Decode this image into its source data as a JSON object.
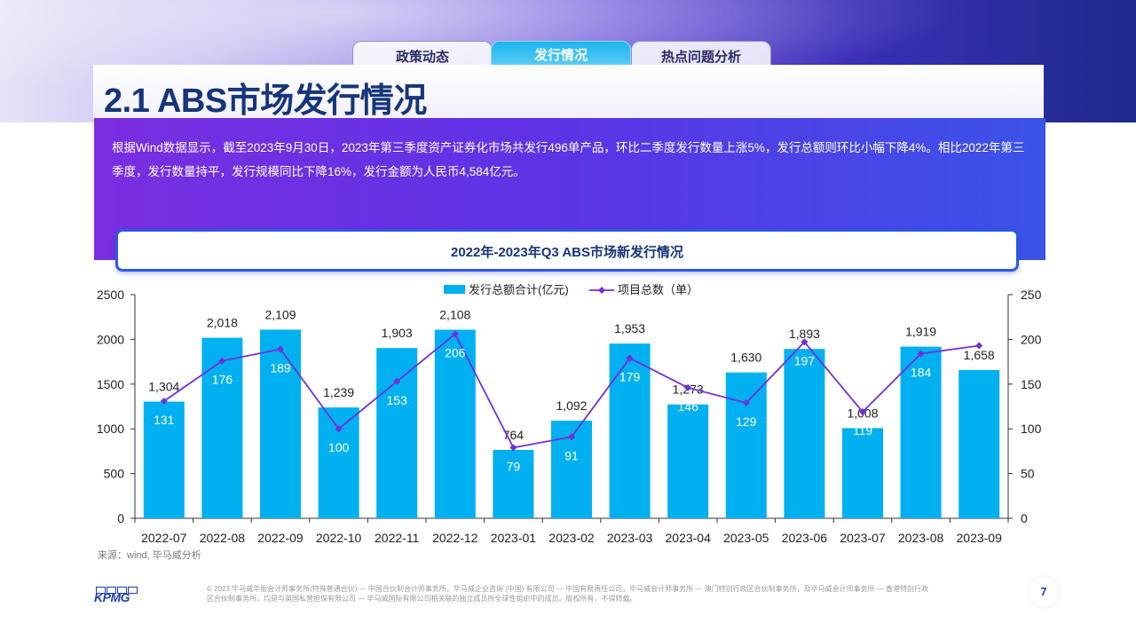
{
  "tabs": [
    "政策动态",
    "发行情况",
    "热点问题分析"
  ],
  "title": "2.1 ABS市场发行情况",
  "summary": "根据Wind数据显示，截至2023年9月30日，2023年第三季度资产证券化市场共发行496单产品，环比二季度发行数量上涨5%，发行总额则环比小幅下降4%。相比2022年第三季度，发行数量持平，发行规模同比下降16%，发行金额为人民币4,584亿元。",
  "chart_title": "2022年-2023年Q3 ABS市场新发行情况",
  "chart_data": {
    "type": "bar",
    "title": "2022年-2023年Q3 ABS市场新发行情况",
    "categories": [
      "2022-07",
      "2022-08",
      "2022-09",
      "2022-10",
      "2022-11",
      "2022-12",
      "2023-01",
      "2023-02",
      "2023-03",
      "2023-04",
      "2023-05",
      "2023-06",
      "2023-07",
      "2023-08",
      "2023-09"
    ],
    "series": [
      {
        "name": "发行总额合计(亿元)",
        "type": "bar",
        "axis": "left",
        "color": "#00b0f0",
        "values": [
          1304,
          2018,
          2109,
          1239,
          1903,
          2108,
          764,
          1092,
          1953,
          1273,
          1630,
          1893,
          1008,
          1919,
          1658
        ],
        "labels": [
          "1,304",
          "2,018",
          "2,109",
          "1,239",
          "1,903",
          "2,108",
          "764",
          "1,092",
          "1,953",
          "1,273",
          "1,630",
          "1,893",
          "1,008",
          "1,919",
          "1,658"
        ]
      },
      {
        "name": "项目总数（单）",
        "type": "line",
        "axis": "right",
        "color": "#7030d8",
        "values": [
          131,
          176,
          189,
          100,
          153,
          206,
          79,
          91,
          179,
          146,
          129,
          197,
          119,
          184,
          193
        ]
      }
    ],
    "y_left": {
      "min": 0,
      "max": 2500,
      "ticks": [
        0,
        500,
        1000,
        1500,
        2000,
        2500
      ]
    },
    "y_right": {
      "min": 0,
      "max": 250,
      "ticks": [
        0,
        50,
        100,
        150,
        200,
        250
      ]
    },
    "legend": "top-center",
    "grid": false
  },
  "source": "来源：wind, 毕马威分析",
  "logo": "KPMG",
  "footer": "© 2023 毕马威华振会计师事务所(特殊普通合伙) — 中国合伙制会计师事务所，毕马威企业咨询 (中国) 有限公司 — 中国有限责任公司，毕马威会计师事务所 — 澳门特别行政区合伙制事务所，及毕马威会计师事务所 — 香港特别行政区合伙制事务所，均是与英国私营担保有限公司 — 毕马威国际有限公司相关联的独立成员所全球性组织中的成员。版权所有，不得转载。",
  "page_number": "7"
}
